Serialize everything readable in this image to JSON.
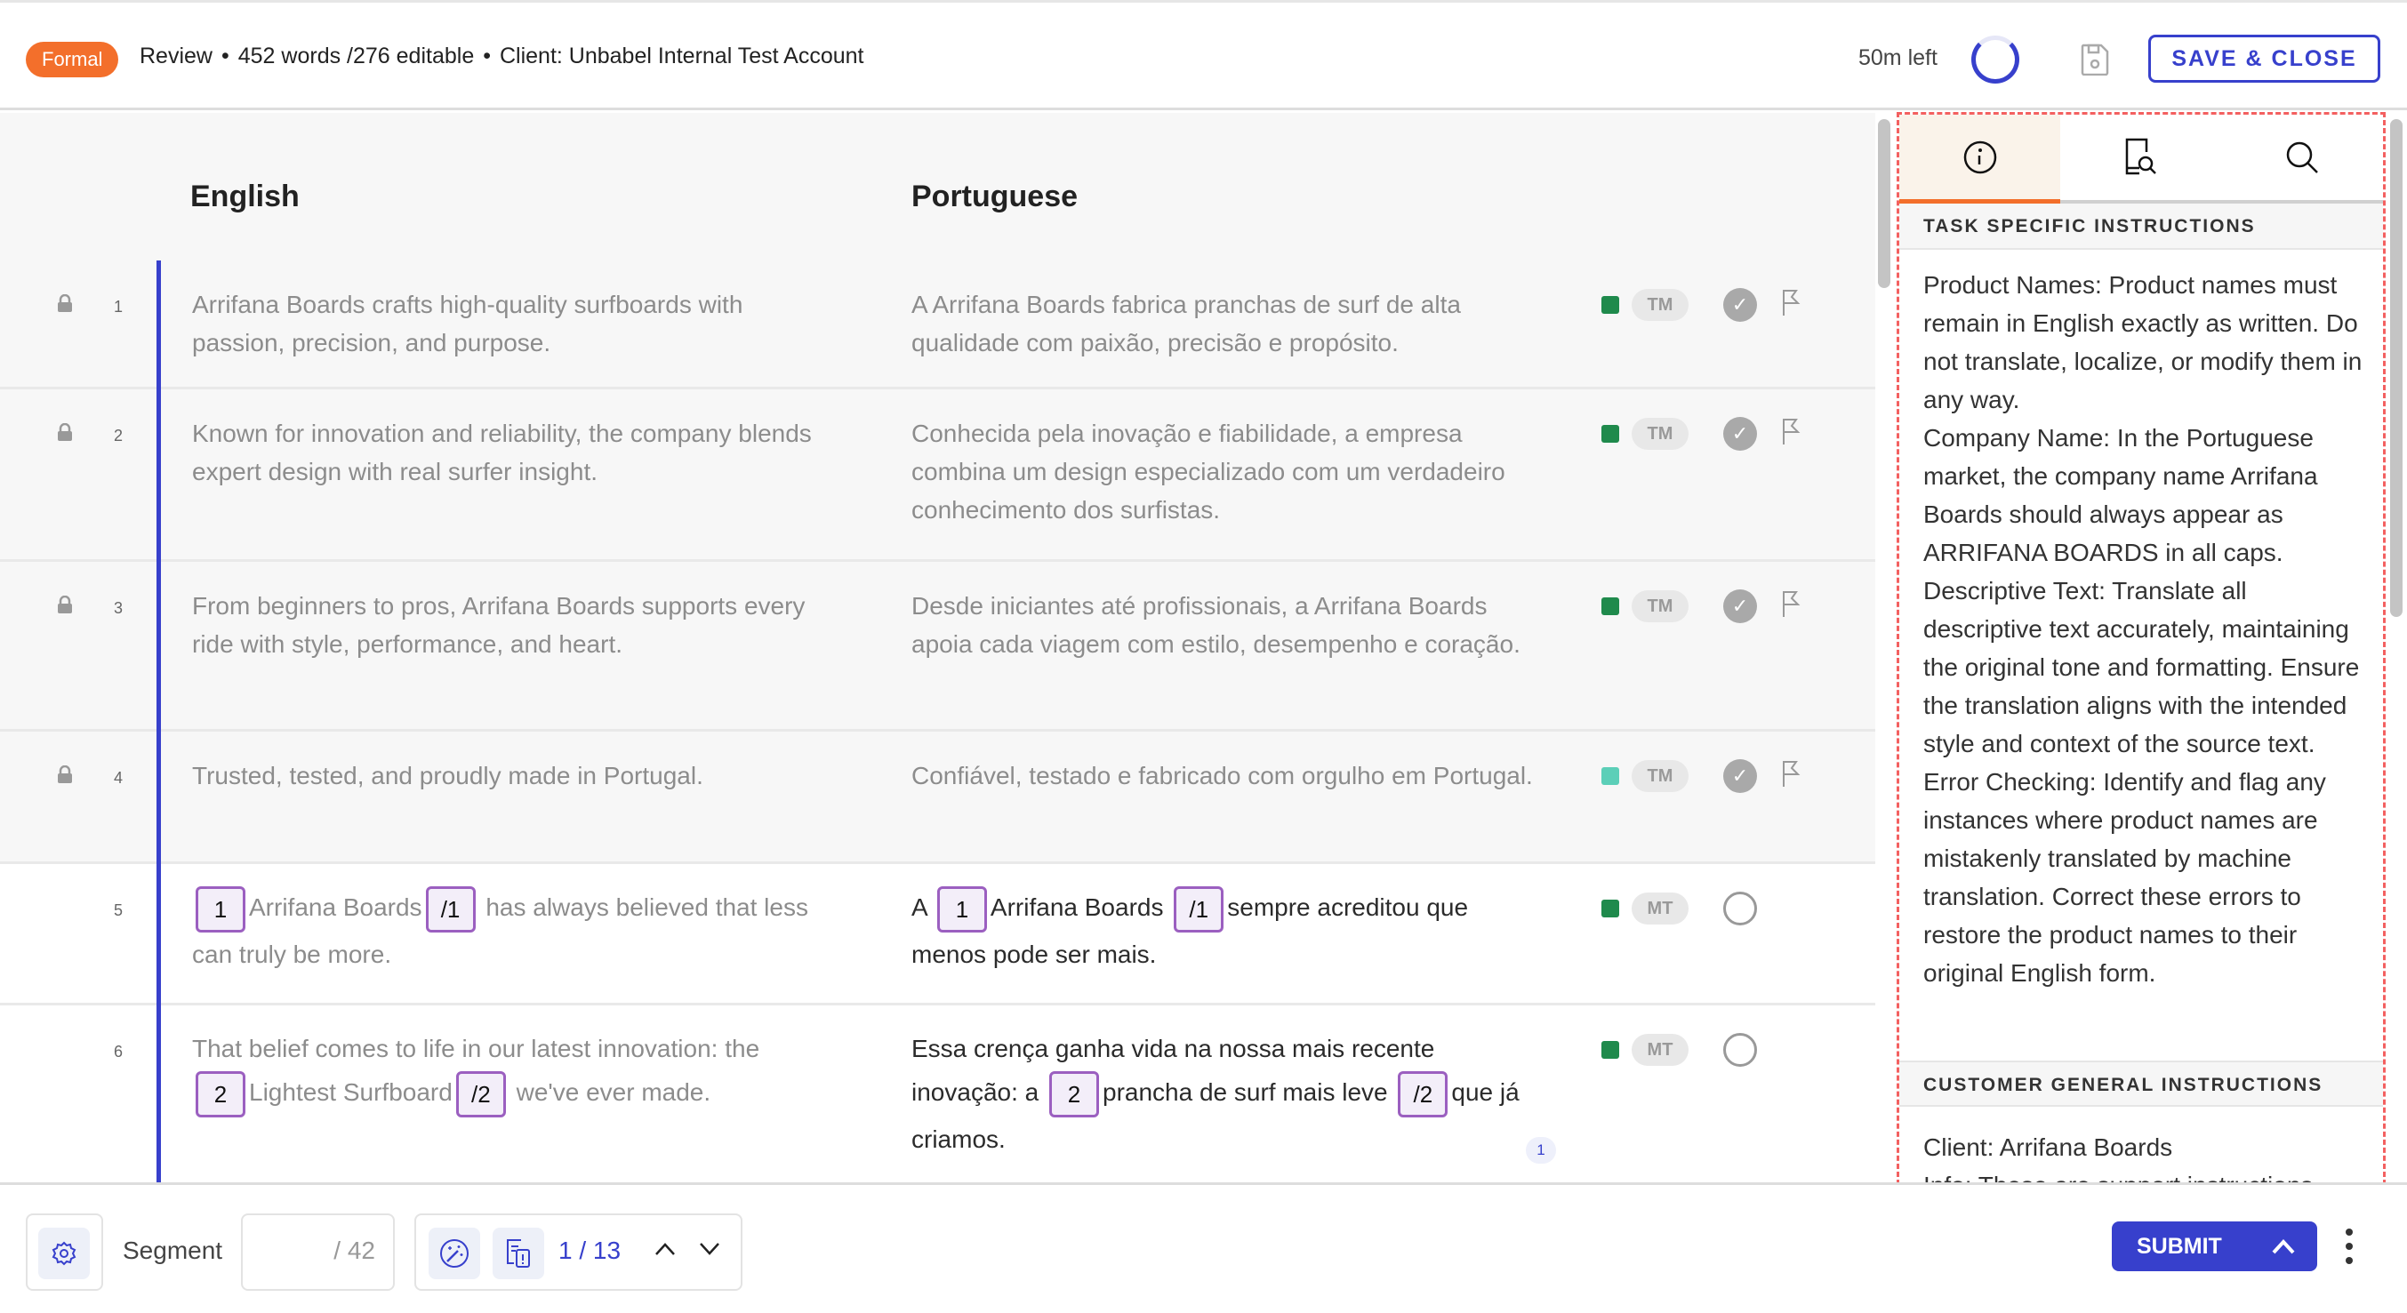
{
  "header": {
    "tone_badge": "Formal",
    "mode": "Review",
    "separator": "•",
    "words": "452 words /276 editable",
    "client": "Client: Unbabel Internal Test Account",
    "time_left": "50m left",
    "save_close_label": "SAVE & CLOSE"
  },
  "columns": {
    "source": "English",
    "target": "Portuguese"
  },
  "colors": {
    "accent": "#3740cc",
    "brand_orange": "#f36f2b",
    "tm_green": "#1f8a4c",
    "tm_light": "#5ccfb8",
    "tag_border": "#9b5fc0"
  },
  "segments": [
    {
      "number": "1",
      "locked": true,
      "source": "Arrifana Boards crafts high-quality surfboards with passion, precision, and purpose.",
      "target": "A Arrifana Boards fabrica pranchas de surf de alta qualidade com paixão, precisão e propósito.",
      "origin": "TM",
      "confirmed": true
    },
    {
      "number": "2",
      "locked": true,
      "source": "Known for innovation and reliability, the company blends expert design with real surfer insight.",
      "target": "Conhecida pela inovação e fiabilidade, a empresa combina um design especializado com um verdadeiro conhecimento dos surfistas.",
      "origin": "TM",
      "confirmed": true
    },
    {
      "number": "3",
      "locked": true,
      "source": "From beginners to pros, Arrifana Boards supports every ride with style, performance, and heart.",
      "target": "Desde iniciantes até profissionais, a Arrifana Boards apoia cada viagem com estilo, desempenho e coração.",
      "origin": "TM",
      "confirmed": true
    },
    {
      "number": "4",
      "locked": true,
      "source": "Trusted, tested, and proudly made in Portugal.",
      "target": "Confiável, testado e fabricado com orgulho em Portugal.",
      "origin": "TM",
      "confirmed": true
    },
    {
      "number": "5",
      "locked": false,
      "origin": "MT",
      "confirmed": false,
      "source_parts": {
        "tag_open": "1",
        "t1": "Arrifana Boards",
        "tag_close": "/1",
        "t2": "has always believed that less can truly be more."
      },
      "target_parts": {
        "t0": "A",
        "tag_open": "1",
        "t1": "Arrifana Boards",
        "tag_close": "/1",
        "t2": "sempre acreditou que menos pode ser mais."
      }
    },
    {
      "number": "6",
      "locked": false,
      "origin": "MT",
      "confirmed": false,
      "comment_count": "1",
      "source_parts": {
        "t0": "That belief comes to life in our latest innovation: the",
        "tag_open": "2",
        "t1": "Lightest Surfboard",
        "tag_close": "/2",
        "t2": "we've ever made."
      },
      "target_parts": {
        "t0": "Essa crença ganha vida na nossa mais recente inovação: a",
        "tag_open": "2",
        "t1": "prancha de surf mais leve",
        "tag_close": "/2",
        "t2": "que já criamos."
      }
    }
  ],
  "panel": {
    "tabs": [
      {
        "icon": "info-icon",
        "active": true
      },
      {
        "icon": "document-search-icon"
      },
      {
        "icon": "search-icon"
      }
    ],
    "task_heading": "TASK SPECIFIC INSTRUCTIONS",
    "task_text": "Product Names: Product names must remain in English exactly as written. Do not translate, localize, or modify them in any way.\nCompany Name: In the Portuguese market, the company name Arrifana Boards should always appear as ARRIFANA BOARDS in all caps.\nDescriptive Text: Translate all descriptive text accurately, maintaining the original tone and formatting. Ensure the translation aligns with the intended style and context of the source text.\nError Checking: Identify and flag any instances where product names are mistakenly translated by machine translation. Correct these errors to restore the product names to their original English form.",
    "customer_heading": "CUSTOMER GENERAL INSTRUCTIONS",
    "customer_text": "Client: Arrifana Boards\nInfo: These are support instructions"
  },
  "footer": {
    "segment_label": "Segment",
    "segment_value": "",
    "segment_total": "/ 42",
    "issue_count": "1 / 13",
    "submit_label": "SUBMIT"
  }
}
